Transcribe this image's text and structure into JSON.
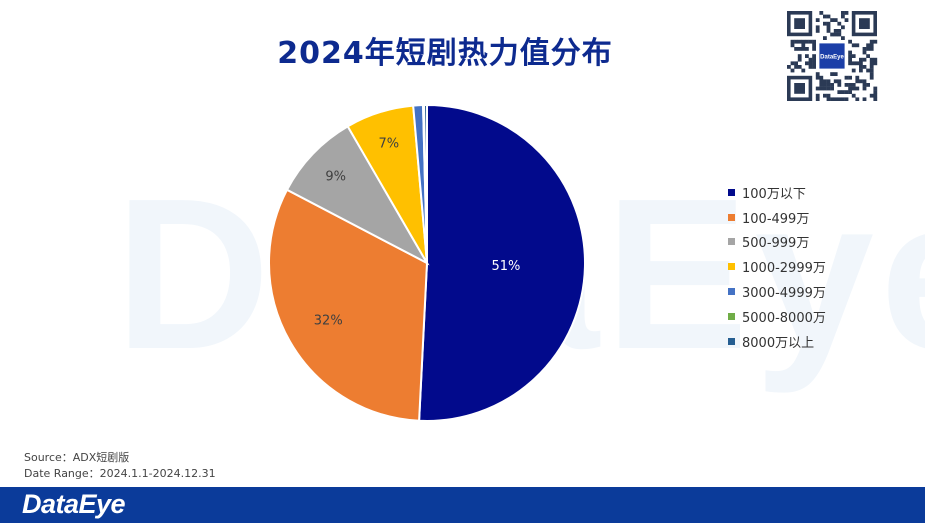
{
  "title": "2024年短剧热力值分布",
  "watermark": "DataEye",
  "qr_badge_text": "DataEye",
  "source_label": "Source：",
  "source_value": "ADX短剧版",
  "date_range_label": "Date Range：",
  "date_range_value": "2024.1.1-2024.12.31",
  "footer_brand": "DataEye",
  "chart_data": {
    "type": "pie",
    "title": "2024年短剧热力值分布",
    "legend_position": "right",
    "slices": [
      {
        "label": "100万以下",
        "value": 51,
        "display": "51%",
        "color": "#020a8c"
      },
      {
        "label": "100-499万",
        "value": 32,
        "display": "32%",
        "color": "#ed7d31"
      },
      {
        "label": "500-999万",
        "value": 9,
        "display": "9%",
        "color": "#a5a5a5"
      },
      {
        "label": "1000-2999万",
        "value": 7,
        "display": "7%",
        "color": "#ffc000"
      },
      {
        "label": "3000-4999万",
        "value": 1,
        "display": "",
        "color": "#4472c4"
      },
      {
        "label": "5000-8000万",
        "value": 0.1,
        "display": "",
        "color": "#70ad47"
      },
      {
        "label": "8000万以上",
        "value": 0.3,
        "display": "",
        "color": "#255e91"
      }
    ]
  }
}
